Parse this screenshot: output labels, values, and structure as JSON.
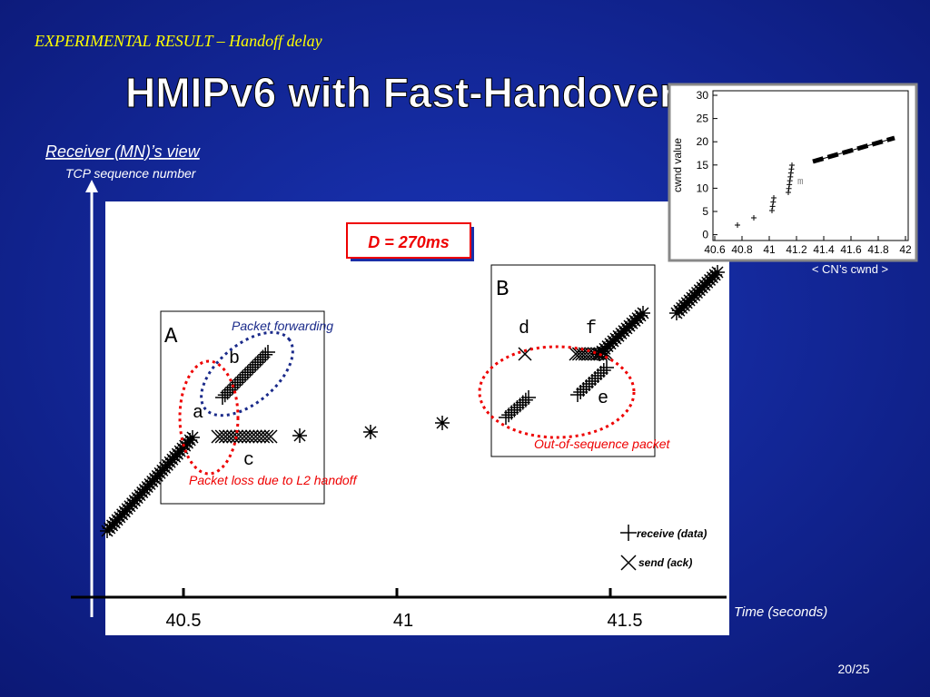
{
  "header": {
    "subtitle": "EXPERIMENTAL RESULT – Handoff delay",
    "title": "HMIPv6 with Fast-Handover"
  },
  "main_plot": {
    "view_label": "Receiver (MN)’s view",
    "y_label": "TCP sequence number",
    "x_label": "Time (seconds)",
    "x_ticks": [
      "40.5",
      "41",
      "41.5"
    ],
    "delay_box": "D = 270ms",
    "regions": [
      "A",
      "B"
    ],
    "point_labels": [
      "a",
      "b",
      "c",
      "d",
      "e",
      "f"
    ],
    "annotations": [
      "Packet forwarding",
      "Packet loss due to L2 handoff",
      "Out-of-sequence packet"
    ],
    "legend": [
      "receive (data)",
      "send (ack)"
    ]
  },
  "inset": {
    "caption": "< CN’s cwnd >",
    "y_label": "cwnd value",
    "y_ticks": [
      "30",
      "25",
      "20",
      "15",
      "10",
      "5",
      "0"
    ],
    "x_ticks": [
      "40.6",
      "40.8",
      "41",
      "41.2",
      "41.4",
      "41.6",
      "41.8",
      "42"
    ],
    "point_label": "m"
  },
  "page_number": "20/25"
}
